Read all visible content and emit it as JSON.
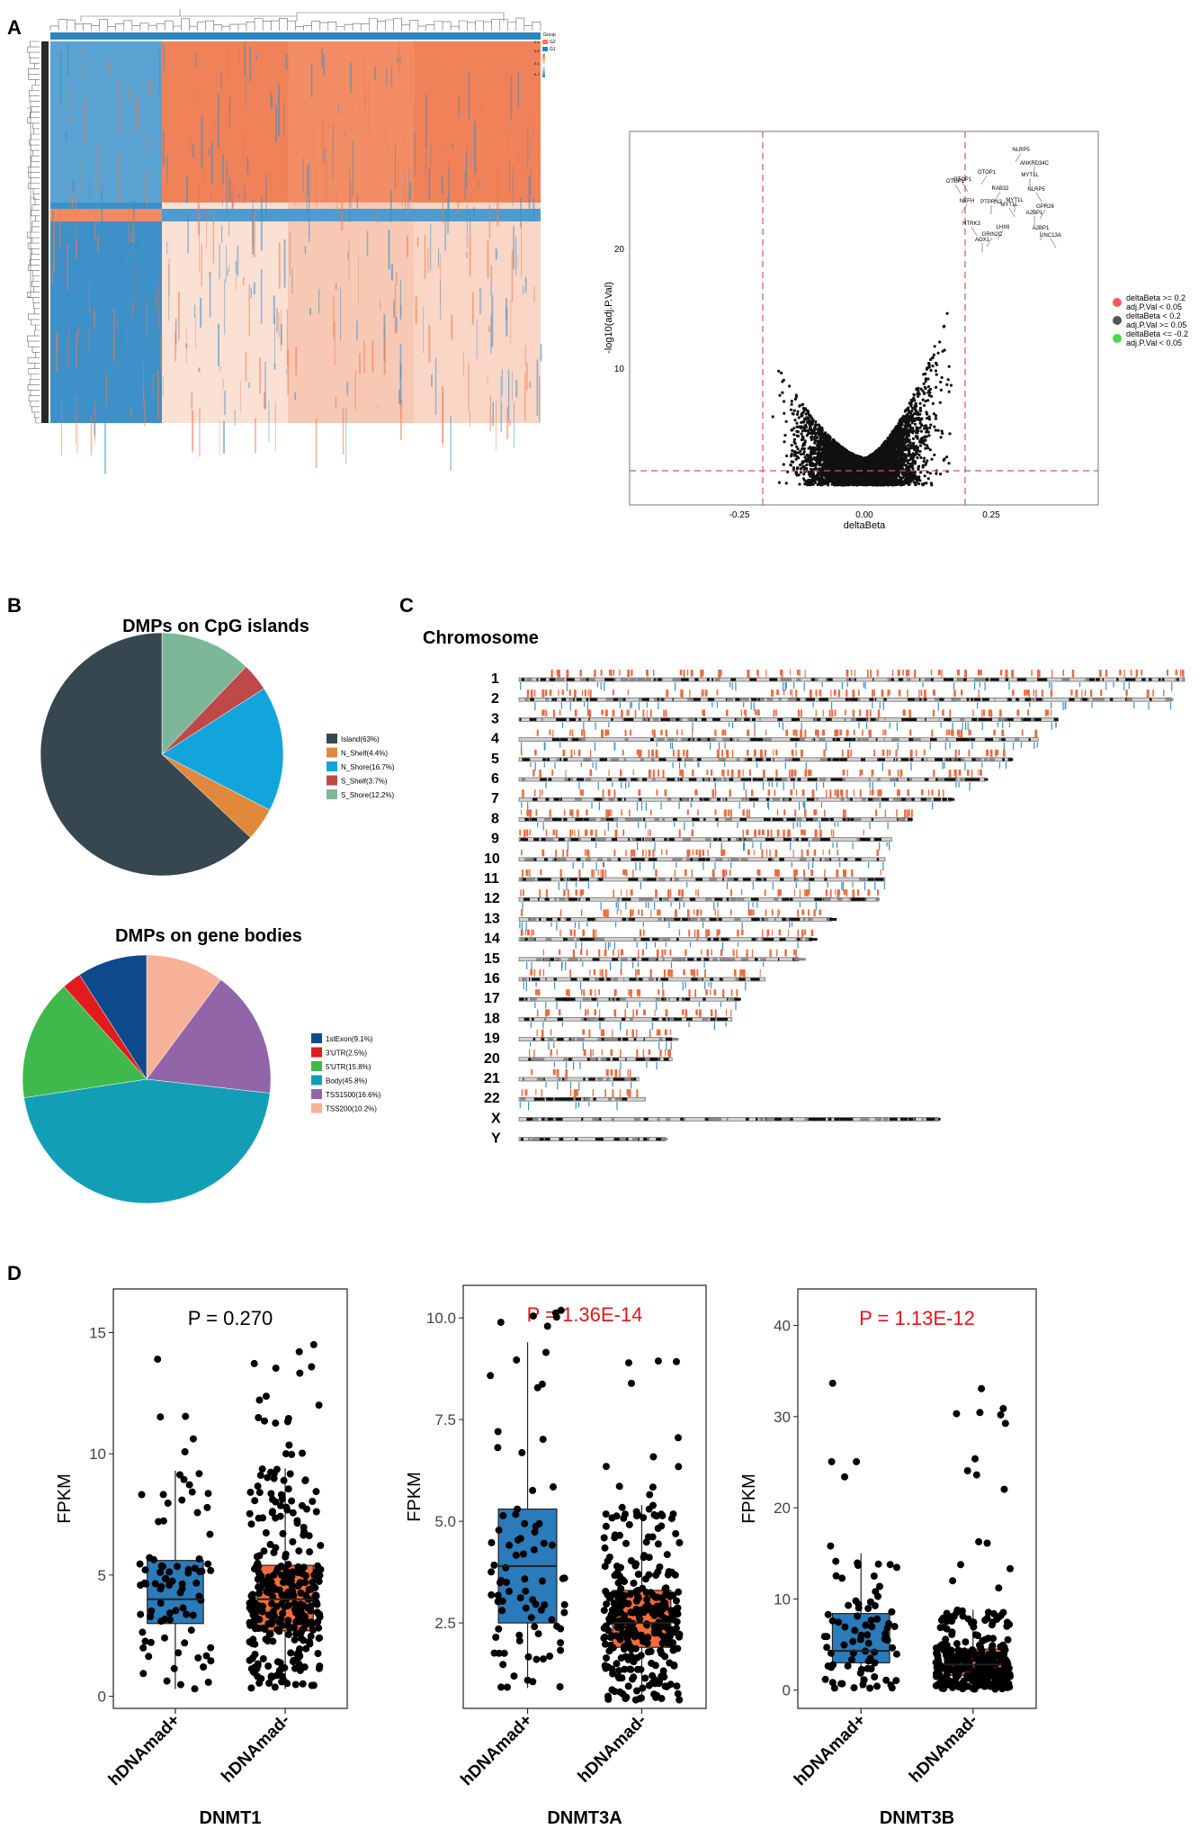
{
  "panels": {
    "A": "A",
    "B": "B",
    "C": "C",
    "D": "D"
  },
  "heatmap": {
    "legend_title": "Group",
    "scale_ticks": [
      "0.8",
      "0.6",
      "0.4",
      "0.2"
    ],
    "group_labels": [
      "G2",
      "G1"
    ],
    "colors": {
      "high": "#f07a4c",
      "low": "#2e86c1",
      "mid": "#f6f1ee"
    }
  },
  "volcano": {
    "xlabel": "deltaBeta",
    "ylabel": "-log10(adj.P.Val)",
    "xticks": [
      "-0.25",
      "0.00",
      "0.25"
    ],
    "yticks": [
      "10",
      "20"
    ],
    "gene_labels": [
      "NLRP5",
      "ANKRD34C",
      "OTOP1",
      "OTOP1",
      "MYT1L",
      "OTOP1",
      "RAB32",
      "MYT1L",
      "NLRP5",
      "NEFH",
      "PTPRN2",
      "MYT1L",
      "GPR26",
      "A2BP1",
      "NTRK3",
      "LHX6",
      "A2BP1",
      "UNC13A",
      "GRIN2C",
      "AOX1"
    ],
    "legend": [
      {
        "label": "deltaBeta >= 0.2",
        "sub": "adj.P.Val < 0.05",
        "color": "#f25c5c"
      },
      {
        "label": "deltaBeta < 0.2",
        "sub": "adj.P.Val >= 0.05",
        "color": "#555555"
      },
      {
        "label": "deltaBeta <= -0.2",
        "sub": "adj.P.Val < 0.05",
        "color": "#4cd64c"
      }
    ]
  },
  "cpg": {
    "title": "DMPs on CpG islands",
    "slices": [
      {
        "label": "Island(63%)",
        "value": 63,
        "color": "#37474f"
      },
      {
        "label": "N_Shelf(4.4%)",
        "value": 4.4,
        "color": "#e0883c"
      },
      {
        "label": "N_Shore(16.7%)",
        "value": 16.7,
        "color": "#12a5dc"
      },
      {
        "label": "S_Shelf(3.7%)",
        "value": 3.7,
        "color": "#bf4848"
      },
      {
        "label": "S_Shore(12.2%)",
        "value": 12.2,
        "color": "#7db79a"
      }
    ]
  },
  "genebody": {
    "title": "DMPs on gene bodies",
    "slices": [
      {
        "label": "1stExon(9.1%)",
        "value": 9.1,
        "color": "#0c4a8c"
      },
      {
        "label": "3'UTR(2.5%)",
        "value": 2.5,
        "color": "#e11c1c"
      },
      {
        "label": "5'UTR(15.8%)",
        "value": 15.8,
        "color": "#3fb94b"
      },
      {
        "label": "Body(45.8%)",
        "value": 45.8,
        "color": "#129fb6"
      },
      {
        "label": "TSS1500(16.6%)",
        "value": 16.6,
        "color": "#9165a8"
      },
      {
        "label": "TSS200(10.2%)",
        "value": 10.2,
        "color": "#f8b199"
      }
    ]
  },
  "chromosome": {
    "title": "Chromosome",
    "names": [
      "1",
      "2",
      "3",
      "4",
      "5",
      "6",
      "7",
      "8",
      "9",
      "10",
      "11",
      "12",
      "13",
      "14",
      "15",
      "16",
      "17",
      "18",
      "19",
      "20",
      "21",
      "22",
      "X",
      "Y"
    ],
    "relative_lengths": [
      1.0,
      0.98,
      0.81,
      0.78,
      0.74,
      0.7,
      0.65,
      0.59,
      0.56,
      0.55,
      0.55,
      0.54,
      0.47,
      0.44,
      0.42,
      0.37,
      0.33,
      0.32,
      0.23,
      0.23,
      0.18,
      0.19,
      0.63,
      0.22
    ]
  },
  "chart_data": [
    {
      "type": "box",
      "title": "DNMT1",
      "ylabel": "FPKM",
      "categories": [
        "hDNAmad+",
        "hDNAmad-"
      ],
      "ylim": [
        -0.5,
        16.8
      ],
      "yticks": [
        0,
        5,
        10,
        15
      ],
      "pvalue": "P = 0.270",
      "pvalue_color": "#000000",
      "boxes": [
        {
          "name": "hDNAmad+",
          "min": 0.3,
          "q1": 3.0,
          "median": 4.0,
          "q3": 5.6,
          "max": 9.3,
          "color": "#2b7bba"
        },
        {
          "name": "hDNAmad-",
          "min": 0.3,
          "q1": 2.7,
          "median": 4.0,
          "q3": 5.4,
          "max": 9.4,
          "color": "#f26b3a"
        }
      ]
    },
    {
      "type": "box",
      "title": "DNMT3A",
      "ylabel": "FPKM",
      "categories": [
        "hDNAmad+",
        "hDNAmad-"
      ],
      "ylim": [
        0.4,
        10.8
      ],
      "yticks": [
        2.5,
        5.0,
        7.5,
        10.0
      ],
      "pvalue": "P = 1.36E-14",
      "pvalue_color": "#e8121b",
      "boxes": [
        {
          "name": "hDNAmad+",
          "min": 0.9,
          "q1": 2.5,
          "median": 3.9,
          "q3": 5.3,
          "max": 9.4,
          "color": "#2b7bba"
        },
        {
          "name": "hDNAmad-",
          "min": 0.6,
          "q1": 1.9,
          "median": 2.5,
          "q3": 3.3,
          "max": 5.4,
          "color": "#f26b3a"
        }
      ]
    },
    {
      "type": "box",
      "title": "DNMT3B",
      "ylabel": "FPKM",
      "categories": [
        "hDNAmad+",
        "hDNAmad-"
      ],
      "ylim": [
        -2,
        44
      ],
      "yticks": [
        0,
        10,
        20,
        30,
        40
      ],
      "pvalue": "P = 1.13E-12",
      "pvalue_color": "#e8121b",
      "boxes": [
        {
          "name": "hDNAmad+",
          "min": 0.2,
          "q1": 3.0,
          "median": 4.3,
          "q3": 8.4,
          "max": 15.0,
          "color": "#2b7bba"
        },
        {
          "name": "hDNAmad-",
          "min": 0.1,
          "q1": 1.6,
          "median": 2.8,
          "q3": 4.5,
          "max": 8.8,
          "color": "#f26b3a"
        }
      ]
    }
  ]
}
